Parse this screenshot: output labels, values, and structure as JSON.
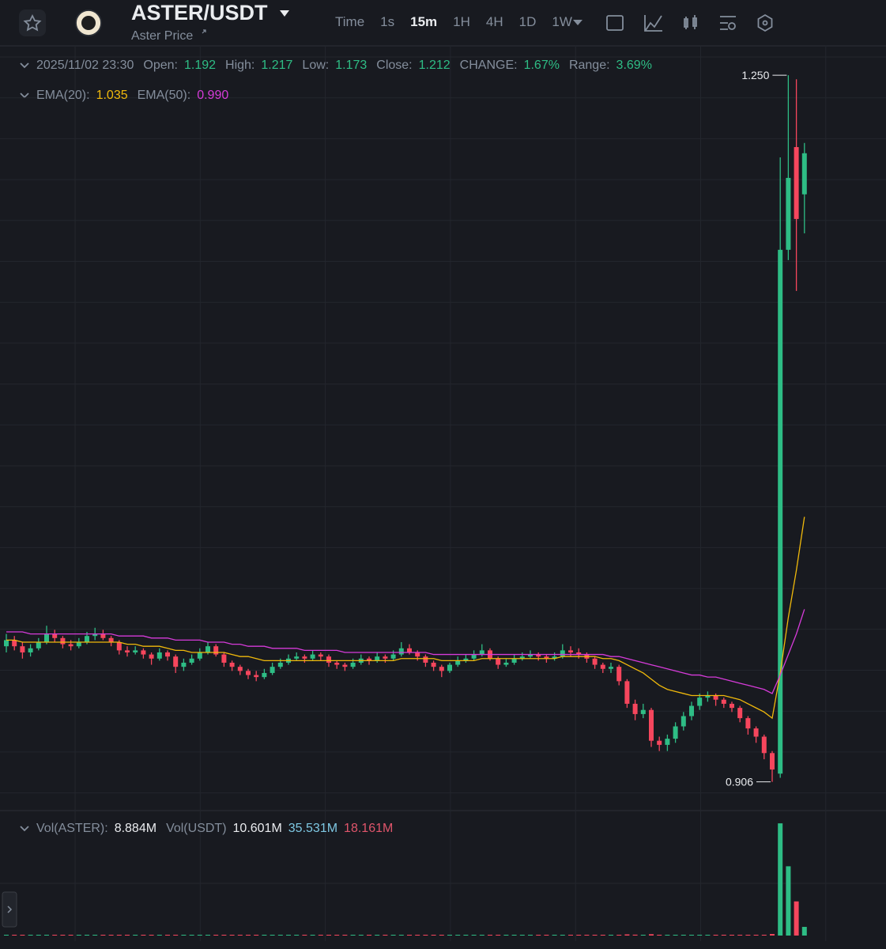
{
  "header": {
    "symbol": "ASTER/USDT",
    "subtitle": "Aster Price",
    "intervals": [
      "Time",
      "1s",
      "15m",
      "1H",
      "4H",
      "1D",
      "1W"
    ]
  },
  "chart_data": [
    {
      "type": "candlestick",
      "up_color": "#2ebd85",
      "down_color": "#f6465d",
      "ylim": [
        0.892,
        1.2635
      ],
      "legend": {
        "time": "2025/11/02 23:30",
        "items": [
          {
            "label": "Open:",
            "value": "1.192"
          },
          {
            "label": "High:",
            "value": "1.217"
          },
          {
            "label": "Low:",
            "value": "1.173"
          },
          {
            "label": "Close:",
            "value": "1.212"
          },
          {
            "label": "CHANGE:",
            "value": "1.67%"
          },
          {
            "label": "Range:",
            "value": "3.69%"
          }
        ]
      },
      "annotations": [
        {
          "value": 1.25,
          "label": "1.250"
        },
        {
          "value": 0.906,
          "label": "0.906"
        }
      ],
      "open": [
        0.972,
        0.975,
        0.972,
        0.969,
        0.971,
        0.974,
        0.978,
        0.976,
        0.973,
        0.972,
        0.974,
        0.977,
        0.978,
        0.976,
        0.974,
        0.97,
        0.969,
        0.97,
        0.968,
        0.966,
        0.969,
        0.967,
        0.962,
        0.964,
        0.966,
        0.969,
        0.972,
        0.968,
        0.964,
        0.962,
        0.96,
        0.958,
        0.957,
        0.959,
        0.962,
        0.964,
        0.966,
        0.967,
        0.966,
        0.968,
        0.967,
        0.964,
        0.963,
        0.962,
        0.964,
        0.966,
        0.965,
        0.967,
        0.966,
        0.968,
        0.971,
        0.969,
        0.967,
        0.964,
        0.962,
        0.96,
        0.963,
        0.965,
        0.966,
        0.968,
        0.97,
        0.966,
        0.963,
        0.964,
        0.966,
        0.967,
        0.968,
        0.967,
        0.966,
        0.967,
        0.97,
        0.969,
        0.968,
        0.966,
        0.963,
        0.961,
        0.962,
        0.955,
        0.944,
        0.939,
        0.941,
        0.926,
        0.924,
        0.927,
        0.933,
        0.938,
        0.943,
        0.947,
        0.948,
        0.946,
        0.944,
        0.942,
        0.937,
        0.932,
        0.928,
        0.92,
        0.91,
        1.165,
        1.215,
        1.192
      ],
      "high": [
        0.978,
        0.977,
        0.974,
        0.973,
        0.976,
        0.982,
        0.98,
        0.977,
        0.975,
        0.976,
        0.979,
        0.981,
        0.98,
        0.977,
        0.975,
        0.972,
        0.972,
        0.971,
        0.969,
        0.971,
        0.97,
        0.968,
        0.966,
        0.968,
        0.971,
        0.974,
        0.973,
        0.969,
        0.965,
        0.963,
        0.961,
        0.96,
        0.961,
        0.964,
        0.966,
        0.968,
        0.969,
        0.968,
        0.97,
        0.969,
        0.968,
        0.965,
        0.964,
        0.966,
        0.968,
        0.967,
        0.969,
        0.968,
        0.97,
        0.974,
        0.973,
        0.97,
        0.968,
        0.965,
        0.963,
        0.964,
        0.967,
        0.968,
        0.97,
        0.973,
        0.971,
        0.967,
        0.966,
        0.968,
        0.969,
        0.97,
        0.969,
        0.968,
        0.969,
        0.973,
        0.972,
        0.971,
        0.969,
        0.967,
        0.964,
        0.964,
        0.963,
        0.956,
        0.946,
        0.944,
        0.942,
        0.928,
        0.929,
        0.935,
        0.94,
        0.945,
        0.949,
        0.95,
        0.949,
        0.947,
        0.945,
        0.943,
        0.938,
        0.933,
        0.929,
        0.921,
        1.21,
        1.25,
        1.248,
        1.217
      ],
      "low": [
        0.969,
        0.97,
        0.966,
        0.967,
        0.97,
        0.973,
        0.974,
        0.971,
        0.97,
        0.971,
        0.973,
        0.975,
        0.975,
        0.972,
        0.968,
        0.967,
        0.968,
        0.966,
        0.963,
        0.965,
        0.965,
        0.959,
        0.96,
        0.963,
        0.965,
        0.968,
        0.967,
        0.962,
        0.96,
        0.958,
        0.956,
        0.955,
        0.956,
        0.958,
        0.961,
        0.963,
        0.965,
        0.964,
        0.965,
        0.965,
        0.962,
        0.961,
        0.96,
        0.961,
        0.963,
        0.963,
        0.964,
        0.964,
        0.965,
        0.967,
        0.968,
        0.965,
        0.962,
        0.96,
        0.957,
        0.959,
        0.962,
        0.964,
        0.965,
        0.967,
        0.965,
        0.961,
        0.962,
        0.963,
        0.965,
        0.966,
        0.965,
        0.964,
        0.965,
        0.966,
        0.967,
        0.966,
        0.964,
        0.961,
        0.959,
        0.959,
        0.953,
        0.942,
        0.936,
        0.937,
        0.923,
        0.921,
        0.921,
        0.925,
        0.931,
        0.936,
        0.941,
        0.945,
        0.943,
        0.942,
        0.94,
        0.935,
        0.929,
        0.925,
        0.917,
        0.906,
        0.908,
        1.16,
        1.145,
        1.173
      ],
      "close": [
        0.975,
        0.972,
        0.969,
        0.971,
        0.974,
        0.978,
        0.976,
        0.973,
        0.972,
        0.974,
        0.977,
        0.978,
        0.976,
        0.974,
        0.97,
        0.969,
        0.97,
        0.968,
        0.966,
        0.969,
        0.967,
        0.962,
        0.964,
        0.966,
        0.969,
        0.972,
        0.968,
        0.964,
        0.962,
        0.96,
        0.958,
        0.957,
        0.959,
        0.962,
        0.964,
        0.966,
        0.967,
        0.966,
        0.968,
        0.967,
        0.964,
        0.963,
        0.962,
        0.964,
        0.966,
        0.965,
        0.967,
        0.966,
        0.968,
        0.971,
        0.969,
        0.967,
        0.964,
        0.962,
        0.96,
        0.963,
        0.965,
        0.966,
        0.968,
        0.97,
        0.966,
        0.963,
        0.964,
        0.966,
        0.967,
        0.968,
        0.967,
        0.966,
        0.967,
        0.97,
        0.969,
        0.968,
        0.966,
        0.963,
        0.961,
        0.962,
        0.955,
        0.944,
        0.939,
        0.941,
        0.926,
        0.924,
        0.927,
        0.933,
        0.938,
        0.943,
        0.947,
        0.948,
        0.946,
        0.944,
        0.942,
        0.937,
        0.932,
        0.928,
        0.92,
        0.912,
        1.165,
        1.2,
        1.18,
        1.212
      ],
      "series": [
        {
          "name": "EMA(20):",
          "color": "#f0b90b",
          "value_label": "1.035",
          "values": [
            0.975,
            0.975,
            0.974,
            0.974,
            0.974,
            0.974,
            0.974,
            0.974,
            0.974,
            0.974,
            0.974,
            0.974,
            0.974,
            0.974,
            0.974,
            0.973,
            0.973,
            0.972,
            0.972,
            0.972,
            0.971,
            0.97,
            0.97,
            0.969,
            0.969,
            0.969,
            0.969,
            0.969,
            0.968,
            0.967,
            0.967,
            0.966,
            0.965,
            0.965,
            0.965,
            0.965,
            0.965,
            0.965,
            0.965,
            0.965,
            0.965,
            0.965,
            0.965,
            0.965,
            0.965,
            0.965,
            0.965,
            0.965,
            0.965,
            0.966,
            0.966,
            0.966,
            0.966,
            0.966,
            0.965,
            0.965,
            0.965,
            0.965,
            0.965,
            0.966,
            0.966,
            0.966,
            0.966,
            0.966,
            0.966,
            0.966,
            0.966,
            0.966,
            0.966,
            0.967,
            0.967,
            0.967,
            0.967,
            0.967,
            0.966,
            0.966,
            0.965,
            0.963,
            0.961,
            0.959,
            0.956,
            0.953,
            0.951,
            0.95,
            0.949,
            0.948,
            0.948,
            0.948,
            0.948,
            0.948,
            0.947,
            0.946,
            0.944,
            0.942,
            0.94,
            0.937,
            0.959,
            0.986,
            1.009,
            1.035
          ]
        },
        {
          "name": "EMA(50):",
          "color": "#d63bd9",
          "value_label": "0.990",
          "values": [
            0.979,
            0.979,
            0.979,
            0.978,
            0.978,
            0.978,
            0.978,
            0.978,
            0.978,
            0.978,
            0.978,
            0.978,
            0.978,
            0.978,
            0.977,
            0.977,
            0.977,
            0.977,
            0.976,
            0.976,
            0.976,
            0.975,
            0.975,
            0.975,
            0.975,
            0.974,
            0.974,
            0.974,
            0.973,
            0.973,
            0.972,
            0.972,
            0.972,
            0.971,
            0.971,
            0.971,
            0.971,
            0.97,
            0.97,
            0.97,
            0.97,
            0.97,
            0.969,
            0.969,
            0.969,
            0.969,
            0.969,
            0.969,
            0.969,
            0.969,
            0.969,
            0.969,
            0.969,
            0.968,
            0.968,
            0.968,
            0.968,
            0.968,
            0.968,
            0.968,
            0.968,
            0.968,
            0.968,
            0.968,
            0.968,
            0.968,
            0.968,
            0.968,
            0.968,
            0.968,
            0.968,
            0.968,
            0.968,
            0.968,
            0.968,
            0.967,
            0.967,
            0.966,
            0.965,
            0.964,
            0.963,
            0.962,
            0.961,
            0.96,
            0.959,
            0.958,
            0.958,
            0.957,
            0.957,
            0.956,
            0.955,
            0.954,
            0.953,
            0.952,
            0.951,
            0.949,
            0.958,
            0.968,
            0.978,
            0.99
          ]
        }
      ]
    },
    {
      "type": "bar",
      "ylim": [
        0,
        124
      ],
      "legend": [
        {
          "label": "Vol(ASTER):",
          "value": "8.884M"
        },
        {
          "label": "Vol(USDT)",
          "value": "10.601M"
        },
        {
          "value": "35.531M"
        },
        {
          "value": "18.161M"
        }
      ],
      "values": [
        0.5,
        0.4,
        0.4,
        0.3,
        0.4,
        0.6,
        0.4,
        0.3,
        0.3,
        0.3,
        0.4,
        0.5,
        0.3,
        0.3,
        0.4,
        0.3,
        0.3,
        0.3,
        0.4,
        0.3,
        0.3,
        0.6,
        0.4,
        0.3,
        0.3,
        0.4,
        0.3,
        0.3,
        0.3,
        0.3,
        0.4,
        0.3,
        0.3,
        0.3,
        0.3,
        0.3,
        0.3,
        0.3,
        0.3,
        0.3,
        0.3,
        0.3,
        0.3,
        0.3,
        0.3,
        0.3,
        0.3,
        0.3,
        0.3,
        0.3,
        0.3,
        0.3,
        0.3,
        0.3,
        0.3,
        0.3,
        0.3,
        0.3,
        0.3,
        0.3,
        0.3,
        0.3,
        0.3,
        0.3,
        0.3,
        0.3,
        0.3,
        0.3,
        0.3,
        0.3,
        0.3,
        0.3,
        0.3,
        0.3,
        0.3,
        0.3,
        0.6,
        1.2,
        0.9,
        0.6,
        1.4,
        0.7,
        0.5,
        0.5,
        0.6,
        0.6,
        0.5,
        0.4,
        0.3,
        0.3,
        0.4,
        0.5,
        0.5,
        0.6,
        0.8,
        1.6,
        115,
        71,
        35,
        8.884
      ]
    }
  ]
}
